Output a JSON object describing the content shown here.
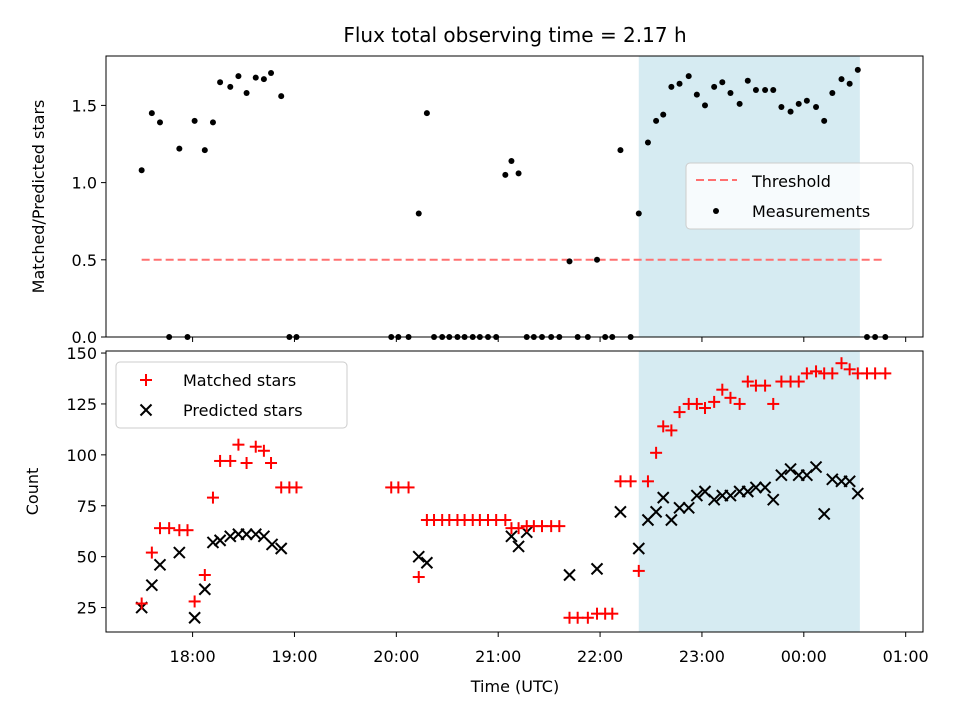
{
  "chart_data": {
    "type": "scatter",
    "title": "Flux total observing time = 2.17 h",
    "xlabel": "Time (UTC)",
    "x_ticks": [
      "18:00",
      "19:00",
      "20:00",
      "21:00",
      "22:00",
      "23:00",
      "00:00",
      "01:00"
    ],
    "x_tick_values": [
      18.0,
      19.0,
      20.0,
      21.0,
      22.0,
      23.0,
      24.0,
      25.0
    ],
    "xlim": [
      17.15,
      25.17
    ],
    "highlight_span": [
      22.38,
      24.55
    ],
    "highlight_color": "#add8e6",
    "panels": [
      {
        "ylabel": "Matched/Predicted stars",
        "ylim": [
          0,
          1.82
        ],
        "y_ticks": [
          0.0,
          0.5,
          1.0,
          1.5
        ],
        "y_tick_labels": [
          "0.0",
          "0.5",
          "1.0",
          "1.5"
        ],
        "legend": {
          "position": "center-right",
          "threshold_label": "Threshold",
          "measurements_label": "Measurements"
        },
        "threshold": {
          "value": 0.5,
          "x_range": [
            17.5,
            24.8
          ],
          "color": "#ff7070"
        },
        "measurements": {
          "color": "#000000",
          "x": [
            17.5,
            17.6,
            17.68,
            17.77,
            17.87,
            17.95,
            18.02,
            18.12,
            18.2,
            18.27,
            18.37,
            18.45,
            18.53,
            18.62,
            18.7,
            18.77,
            18.87,
            18.95,
            19.02,
            19.95,
            20.02,
            20.12,
            20.22,
            20.3,
            20.37,
            20.45,
            20.52,
            20.6,
            20.67,
            20.75,
            20.82,
            20.9,
            20.98,
            21.07,
            21.13,
            21.2,
            21.28,
            21.35,
            21.43,
            21.52,
            21.6,
            21.7,
            21.78,
            21.88,
            21.97,
            22.05,
            22.12,
            22.2,
            22.3,
            22.38,
            22.47,
            22.55,
            22.62,
            22.7,
            22.78,
            22.87,
            22.95,
            23.03,
            23.12,
            23.2,
            23.28,
            23.37,
            23.45,
            23.53,
            23.62,
            23.7,
            23.78,
            23.87,
            23.95,
            24.03,
            24.12,
            24.2,
            24.28,
            24.37,
            24.45,
            24.53,
            24.62,
            24.7,
            24.8
          ],
          "y": [
            1.08,
            1.45,
            1.39,
            0.0,
            1.22,
            0.0,
            1.4,
            1.21,
            1.39,
            1.65,
            1.62,
            1.69,
            1.58,
            1.68,
            1.67,
            1.71,
            1.56,
            0.0,
            0.0,
            0.0,
            0.0,
            0.0,
            0.8,
            1.45,
            0.0,
            0.0,
            0.0,
            0.0,
            0.0,
            0.0,
            0.0,
            0.0,
            0.0,
            1.05,
            1.14,
            1.06,
            0.0,
            0.0,
            0.0,
            0.0,
            0.0,
            0.49,
            0.0,
            0.0,
            0.5,
            0.0,
            0.0,
            1.21,
            0.0,
            0.8,
            1.26,
            1.4,
            1.44,
            1.62,
            1.64,
            1.69,
            1.57,
            1.5,
            1.62,
            1.65,
            1.58,
            1.51,
            1.66,
            1.6,
            1.6,
            1.6,
            1.49,
            1.46,
            1.51,
            1.53,
            1.49,
            1.4,
            1.58,
            1.67,
            1.64,
            1.73,
            0.0,
            0.0,
            0.0
          ]
        }
      },
      {
        "ylabel": "Count",
        "ylim": [
          13,
          151
        ],
        "y_ticks": [
          25,
          50,
          75,
          100,
          125,
          150
        ],
        "y_tick_labels": [
          "25",
          "50",
          "75",
          "100",
          "125",
          "150"
        ],
        "legend": {
          "position": "upper-left",
          "matched_label": "Matched stars",
          "predicted_label": "Predicted stars"
        },
        "matched": {
          "color": "#ff0000",
          "x": [
            17.5,
            17.6,
            17.68,
            17.77,
            17.87,
            17.95,
            18.02,
            18.12,
            18.2,
            18.27,
            18.37,
            18.45,
            18.53,
            18.62,
            18.7,
            18.77,
            18.87,
            18.95,
            19.02,
            19.95,
            20.02,
            20.12,
            20.22,
            20.3,
            20.37,
            20.45,
            20.52,
            20.6,
            20.67,
            20.75,
            20.82,
            20.9,
            20.98,
            21.07,
            21.13,
            21.2,
            21.28,
            21.35,
            21.43,
            21.52,
            21.6,
            21.7,
            21.78,
            21.88,
            21.97,
            22.05,
            22.12,
            22.2,
            22.3,
            22.38,
            22.47,
            22.55,
            22.62,
            22.7,
            22.78,
            22.87,
            22.95,
            23.03,
            23.12,
            23.2,
            23.28,
            23.37,
            23.45,
            23.53,
            23.62,
            23.7,
            23.78,
            23.87,
            23.95,
            24.03,
            24.12,
            24.2,
            24.28,
            24.37,
            24.45,
            24.53,
            24.62,
            24.7,
            24.8
          ],
          "y": [
            27,
            52,
            64,
            64,
            63,
            63,
            28,
            41,
            79,
            97,
            97,
            105,
            96,
            104,
            102,
            96,
            84,
            84,
            84,
            84,
            84,
            84,
            40,
            68,
            68,
            68,
            68,
            68,
            68,
            68,
            68,
            68,
            68,
            68,
            64,
            64,
            65,
            65,
            65,
            65,
            65,
            20,
            20,
            20,
            22,
            22,
            22,
            87,
            87,
            43,
            87,
            101,
            114,
            112,
            121,
            125,
            125,
            123,
            126,
            132,
            128,
            125,
            136,
            134,
            134,
            125,
            136,
            136,
            136,
            140,
            141,
            140,
            140,
            145,
            142,
            140,
            140,
            140,
            140
          ]
        },
        "predicted": {
          "color": "#000000",
          "x": [
            17.5,
            17.6,
            17.68,
            17.87,
            18.02,
            18.12,
            18.2,
            18.27,
            18.37,
            18.45,
            18.53,
            18.62,
            18.7,
            18.78,
            18.87,
            20.22,
            20.3,
            21.13,
            21.2,
            21.28,
            21.7,
            21.97,
            22.2,
            22.38,
            22.47,
            22.55,
            22.62,
            22.7,
            22.78,
            22.87,
            22.95,
            23.03,
            23.12,
            23.2,
            23.28,
            23.37,
            23.45,
            23.53,
            23.62,
            23.7,
            23.78,
            23.87,
            23.95,
            24.03,
            24.12,
            24.2,
            24.28,
            24.37,
            24.45,
            24.53
          ],
          "y": [
            25,
            36,
            46,
            52,
            20,
            34,
            57,
            58,
            60,
            61,
            61,
            61,
            60,
            56,
            54,
            50,
            47,
            60,
            55,
            62,
            41,
            44,
            72,
            54,
            68,
            72,
            79,
            68,
            74,
            74,
            80,
            82,
            78,
            80,
            80,
            82,
            82,
            84,
            84,
            78,
            90,
            93,
            90,
            90,
            94,
            71,
            88,
            87,
            87,
            81
          ]
        }
      }
    ]
  }
}
